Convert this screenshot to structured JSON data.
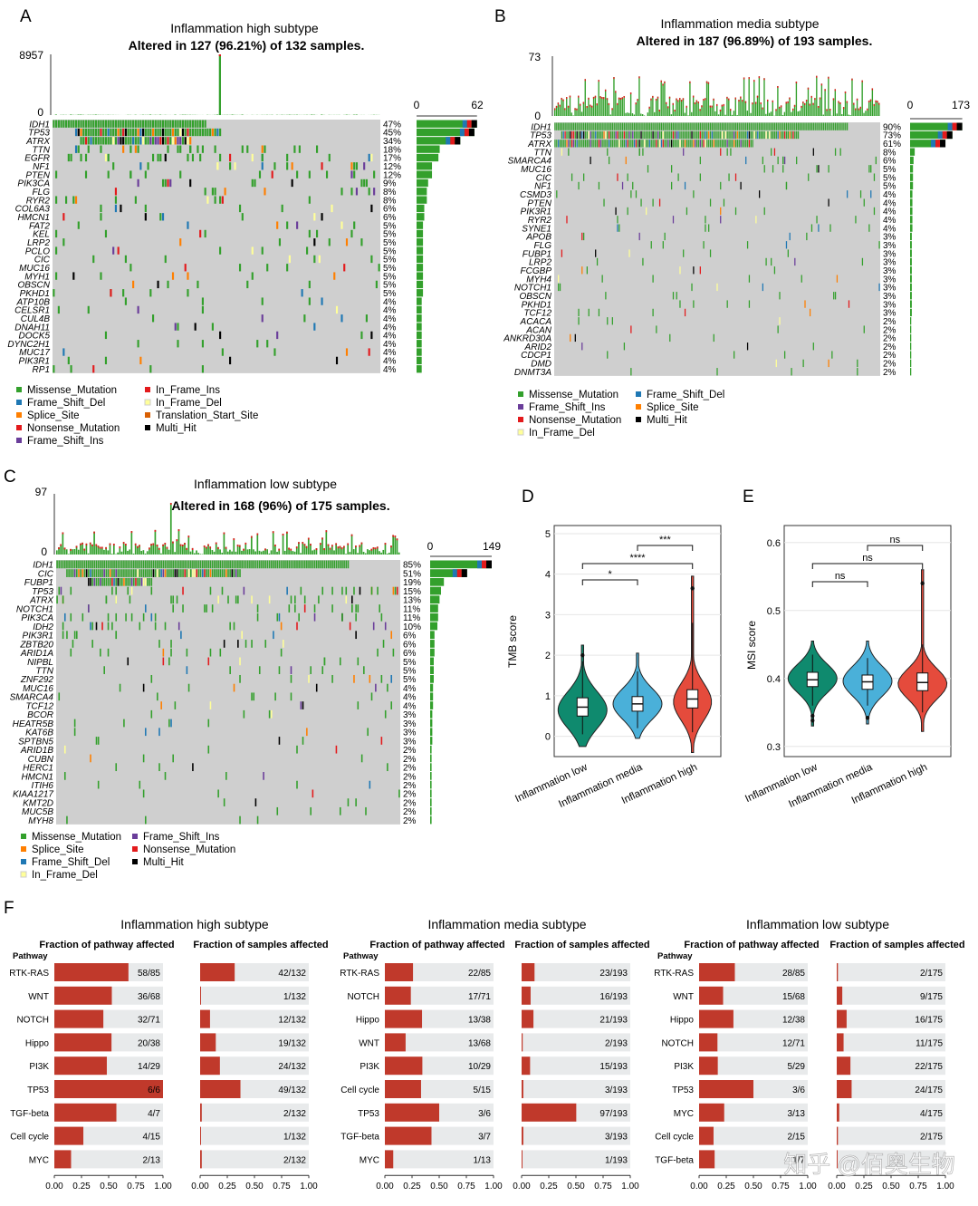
{
  "panels": {
    "A": {
      "letter": "A",
      "title": "Inflammation high subtype",
      "subtitle": "Altered in 127 (96.21%) of 132 samples.",
      "tmb_max": "8957",
      "tmb_min": "0",
      "bar_min": "0",
      "bar_max": "62",
      "samples": 132,
      "genes": [
        "IDH1",
        "TP53",
        "ATRX",
        "TTN",
        "EGFR",
        "NF1",
        "PTEN",
        "PIK3CA",
        "FLG",
        "RYR2",
        "COL6A3",
        "HMCN1",
        "FAT2",
        "KEL",
        "LRP2",
        "PCLO",
        "CIC",
        "MUC16",
        "MYH1",
        "OBSCN",
        "PKHD1",
        "ATP10B",
        "CELSR1",
        "CUL4B",
        "DNAH11",
        "DOCK5",
        "DYNC2H1",
        "MUC17",
        "PIK3R1",
        "RP1"
      ],
      "pcts": [
        "47%",
        "45%",
        "34%",
        "18%",
        "17%",
        "12%",
        "12%",
        "9%",
        "8%",
        "8%",
        "6%",
        "6%",
        "5%",
        "5%",
        "5%",
        "5%",
        "5%",
        "5%",
        "5%",
        "5%",
        "5%",
        "4%",
        "4%",
        "4%",
        "4%",
        "4%",
        "4%",
        "4%",
        "4%",
        "4%"
      ],
      "legend": [
        {
          "label": "Missense_Mutation",
          "color": "#33a02c"
        },
        {
          "label": "In_Frame_Ins",
          "color": "#e31a1c"
        },
        {
          "label": "Frame_Shift_Del",
          "color": "#1f78b4"
        },
        {
          "label": "In_Frame_Del",
          "color": "#ffff99"
        },
        {
          "label": "Splice_Site",
          "color": "#ff7f00"
        },
        {
          "label": "Translation_Start_Site",
          "color": "#d95f02"
        },
        {
          "label": "Nonsense_Mutation",
          "color": "#e31a1c"
        },
        {
          "label": "Multi_Hit",
          "color": "#000000"
        },
        {
          "label": "Frame_Shift_Ins",
          "color": "#6a3d9a"
        }
      ]
    },
    "B": {
      "letter": "B",
      "title": "Inflammation media subtype",
      "subtitle": "Altered in 187 (96.89%) of 193 samples.",
      "tmb_max": "73",
      "tmb_min": "0",
      "bar_min": "0",
      "bar_max": "173",
      "samples": 193,
      "genes": [
        "IDH1",
        "TP53",
        "ATRX",
        "TTN",
        "SMARCA4",
        "MUC16",
        "CIC",
        "NF1",
        "CSMD3",
        "PTEN",
        "PIK3R1",
        "RYR2",
        "SYNE1",
        "APOB",
        "FLG",
        "FUBP1",
        "LRP2",
        "FCGBP",
        "MYH4",
        "NOTCH1",
        "OBSCN",
        "PKHD1",
        "TCF12",
        "ACACA",
        "ACAN",
        "ANKRD30A",
        "ARID2",
        "CDCP1",
        "DMD",
        "DNMT3A"
      ],
      "pcts": [
        "90%",
        "73%",
        "61%",
        "8%",
        "6%",
        "5%",
        "5%",
        "5%",
        "4%",
        "4%",
        "4%",
        "4%",
        "4%",
        "3%",
        "3%",
        "3%",
        "3%",
        "3%",
        "3%",
        "3%",
        "3%",
        "3%",
        "3%",
        "2%",
        "2%",
        "2%",
        "2%",
        "2%",
        "2%",
        "2%"
      ],
      "legend": [
        {
          "label": "Missense_Mutation",
          "color": "#33a02c"
        },
        {
          "label": "Frame_Shift_Del",
          "color": "#1f78b4"
        },
        {
          "label": "Frame_Shift_Ins",
          "color": "#6a3d9a"
        },
        {
          "label": "Splice_Site",
          "color": "#ff7f00"
        },
        {
          "label": "Nonsense_Mutation",
          "color": "#e31a1c"
        },
        {
          "label": "Multi_Hit",
          "color": "#000000"
        },
        {
          "label": "In_Frame_Del",
          "color": "#ffff99"
        }
      ]
    },
    "C": {
      "letter": "C",
      "title": "Inflammation low subtype",
      "subtitle": "Altered in 168 (96%) of 175 samples.",
      "tmb_max": "97",
      "tmb_min": "0",
      "bar_min": "0",
      "bar_max": "149",
      "samples": 175,
      "genes": [
        "IDH1",
        "CIC",
        "FUBP1",
        "TP53",
        "ATRX",
        "NOTCH1",
        "PIK3CA",
        "IDH2",
        "PIK3R1",
        "ZBTB20",
        "ARID1A",
        "NIPBL",
        "TTN",
        "ZNF292",
        "MUC16",
        "SMARCA4",
        "TCF12",
        "BCOR",
        "HEATR5B",
        "KAT6B",
        "SPTBN5",
        "ARID1B",
        "CUBN",
        "HERC1",
        "HMCN1",
        "ITIH6",
        "KIAA1217",
        "KMT2D",
        "MUC5B",
        "MYH8"
      ],
      "pcts": [
        "85%",
        "51%",
        "19%",
        "15%",
        "13%",
        "11%",
        "11%",
        "10%",
        "6%",
        "6%",
        "6%",
        "5%",
        "5%",
        "5%",
        "4%",
        "4%",
        "4%",
        "3%",
        "3%",
        "3%",
        "3%",
        "2%",
        "2%",
        "2%",
        "2%",
        "2%",
        "2%",
        "2%",
        "2%",
        "2%"
      ],
      "legend": [
        {
          "label": "Missense_Mutation",
          "color": "#33a02c"
        },
        {
          "label": "Frame_Shift_Ins",
          "color": "#6a3d9a"
        },
        {
          "label": "Splice_Site",
          "color": "#ff7f00"
        },
        {
          "label": "Nonsense_Mutation",
          "color": "#e31a1c"
        },
        {
          "label": "Frame_Shift_Del",
          "color": "#1f78b4"
        },
        {
          "label": "Multi_Hit",
          "color": "#000000"
        },
        {
          "label": "In_Frame_Del",
          "color": "#ffff99"
        }
      ]
    },
    "D": {
      "letter": "D",
      "ylabel": "TMB score",
      "yticks": [
        "0",
        "1",
        "2",
        "3",
        "4",
        "5"
      ],
      "groups": [
        "Inflammation low",
        "Inflammation media",
        "Inflammation high"
      ],
      "sig": [
        "*",
        "****",
        "***"
      ]
    },
    "E": {
      "letter": "E",
      "ylabel": "MSI score",
      "yticks": [
        "0.3",
        "0.4",
        "0.5",
        "0.6"
      ],
      "groups": [
        "Inflammation low",
        "Inflammation media",
        "Inflammation high"
      ],
      "sig": [
        "ns",
        "ns",
        "ns"
      ]
    },
    "F": {
      "letter": "F",
      "col1": "Fraction of pathway affected",
      "col2": "Fraction of samples affected",
      "pathway_label": "Pathway",
      "xticks": [
        "0.00",
        "0.25",
        "0.50",
        "0.75",
        "1.00"
      ]
    }
  },
  "colors": {
    "bar_red": "#c0392b",
    "bar_bg": "#e8eaeb",
    "teal": "#0f8a6e",
    "blue": "#4ab0d9",
    "red": "#e54b3c",
    "missense": "#33a02c",
    "grid_cell": "#cfcfcf"
  },
  "watermark": "知乎 @佰奥生物",
  "chart_data": [
    {
      "type": "table",
      "title": "Inflammation high subtype",
      "pathways": [
        "RTK-RAS",
        "WNT",
        "NOTCH",
        "Hippo",
        "PI3K",
        "TP53",
        "TGF-beta",
        "Cell cycle",
        "MYC"
      ],
      "pathway_fraction": [
        0.682,
        0.529,
        0.451,
        0.526,
        0.483,
        1.0,
        0.571,
        0.267,
        0.154
      ],
      "pathway_label": [
        "58/85",
        "36/68",
        "32/71",
        "20/38",
        "14/29",
        "6/6",
        "4/7",
        "4/15",
        "2/13"
      ],
      "sample_fraction": [
        0.318,
        0.008,
        0.091,
        0.144,
        0.182,
        0.371,
        0.015,
        0.008,
        0.015
      ],
      "sample_label": [
        "42/132",
        "1/132",
        "12/132",
        "19/132",
        "24/132",
        "49/132",
        "2/132",
        "1/132",
        "2/132"
      ]
    },
    {
      "type": "table",
      "title": "Inflammation media subtype",
      "pathways": [
        "RTK-RAS",
        "NOTCH",
        "Hippo",
        "WNT",
        "PI3K",
        "Cell cycle",
        "TP53",
        "TGF-beta",
        "MYC"
      ],
      "pathway_fraction": [
        0.259,
        0.239,
        0.342,
        0.191,
        0.345,
        0.333,
        0.5,
        0.429,
        0.077
      ],
      "pathway_label": [
        "22/85",
        "17/71",
        "13/38",
        "13/68",
        "10/29",
        "5/15",
        "3/6",
        "3/7",
        "1/13"
      ],
      "sample_fraction": [
        0.119,
        0.083,
        0.109,
        0.01,
        0.078,
        0.016,
        0.503,
        0.016,
        0.005
      ],
      "sample_label": [
        "23/193",
        "16/193",
        "21/193",
        "2/193",
        "15/193",
        "3/193",
        "97/193",
        "3/193",
        "1/193"
      ]
    },
    {
      "type": "table",
      "title": "Inflammation low subtype",
      "pathways": [
        "RTK-RAS",
        "WNT",
        "Hippo",
        "NOTCH",
        "PI3K",
        "TP53",
        "MYC",
        "Cell cycle",
        "TGF-beta"
      ],
      "pathway_fraction": [
        0.329,
        0.221,
        0.316,
        0.169,
        0.172,
        0.5,
        0.231,
        0.133,
        0.143
      ],
      "pathway_label": [
        "28/85",
        "15/68",
        "12/38",
        "12/71",
        "5/29",
        "3/6",
        "3/13",
        "2/15",
        "1/7"
      ],
      "sample_fraction": [
        0.011,
        0.051,
        0.091,
        0.063,
        0.126,
        0.137,
        0.023,
        0.011,
        0.0
      ],
      "sample_label": [
        "2/175",
        "9/175",
        "16/175",
        "11/175",
        "22/175",
        "24/175",
        "4/175",
        "2/175",
        ""
      ]
    }
  ]
}
